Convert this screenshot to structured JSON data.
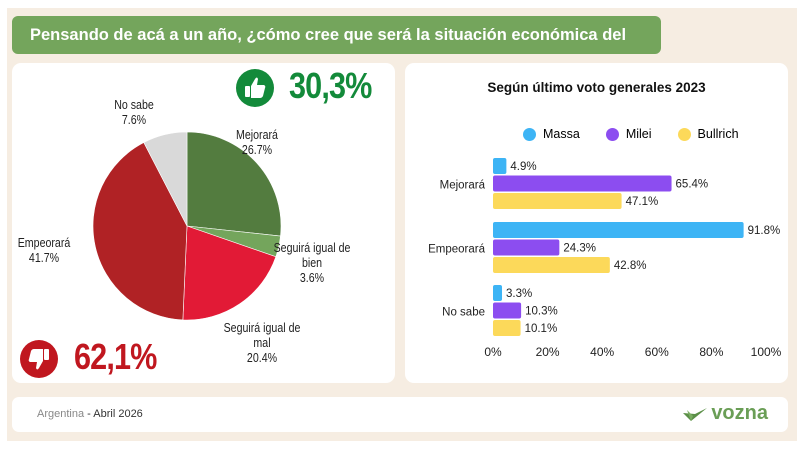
{
  "header": {
    "title": "Pensando de acá a un año, ¿cómo cree que será la situación económica del país?"
  },
  "summary": {
    "positive": {
      "value": "30,3%",
      "icon": "thumbs-up-icon",
      "color": "#138a3a"
    },
    "negative": {
      "value": "62,1%",
      "icon": "thumbs-down-icon",
      "color": "#c0171f"
    }
  },
  "footer": {
    "country": "Argentina",
    "separator": " - ",
    "date": "Abril 2026",
    "brand": "vozna"
  },
  "chart_data": [
    {
      "type": "pie",
      "title": "",
      "slices": [
        {
          "label": "Mejorará",
          "value": 26.7,
          "display": "26.7%",
          "color": "#537c3f"
        },
        {
          "label": "Seguirá igual de bien",
          "value": 3.6,
          "display": "3.6%",
          "color": "#74a55c"
        },
        {
          "label": "Seguirá igual de mal",
          "value": 20.4,
          "display": "20.4%",
          "color": "#e21a36"
        },
        {
          "label": "Empeorará",
          "value": 41.7,
          "display": "41.7%",
          "color": "#b02225"
        },
        {
          "label": "No sabe",
          "value": 7.6,
          "display": "7.6%",
          "color": "#d9d9d9"
        }
      ]
    },
    {
      "type": "bar",
      "orientation": "horizontal",
      "title": "Según último voto generales 2023",
      "categories": [
        "Mejorará",
        "Empeorará",
        "No sabe"
      ],
      "series": [
        {
          "name": "Massa",
          "color": "#3db4f5",
          "values": [
            4.9,
            91.8,
            3.3
          ],
          "labels": [
            "4.9%",
            "91.8%",
            "3.3%"
          ]
        },
        {
          "name": "Milei",
          "color": "#8c4df0",
          "values": [
            65.4,
            24.3,
            10.3
          ],
          "labels": [
            "65.4%",
            "24.3%",
            "10.3%"
          ]
        },
        {
          "name": "Bullrich",
          "color": "#fcd95a",
          "values": [
            47.1,
            42.8,
            10.1
          ],
          "labels": [
            "47.1%",
            "42.8%",
            "10.1%"
          ]
        }
      ],
      "xlim": [
        0,
        100
      ],
      "xticks": [
        "0%",
        "20%",
        "40%",
        "60%",
        "80%",
        "100%"
      ],
      "legend": "top",
      "grid": false
    }
  ]
}
